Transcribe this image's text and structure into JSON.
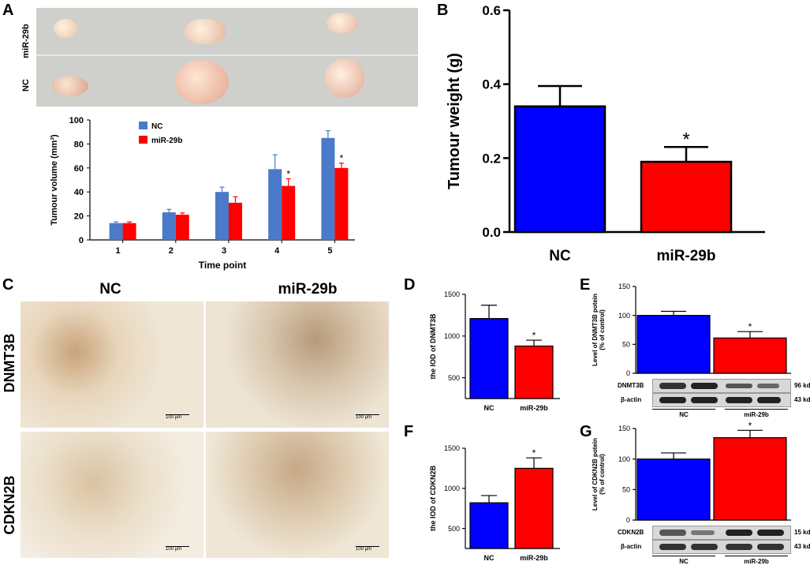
{
  "panels": {
    "a": "A",
    "b": "B",
    "c": "C",
    "d": "D",
    "e": "E",
    "f": "F",
    "g": "G"
  },
  "panel_a_photo": {
    "row_top": "miR-29b",
    "row_bottom": "NC"
  },
  "panel_c": {
    "col_nc": "NC",
    "col_mir": "miR-29b",
    "row_dnmt3b": "DNMT3B",
    "row_cdkn2b": "CDKN2B",
    "scale_bar": "100 μm"
  },
  "blots": {
    "e": {
      "protein": "DNMT3B",
      "control": "β-actin",
      "protein_kd": "96 kd",
      "control_kd": "43 kd",
      "g1": "NC",
      "g2": "miR-29b"
    },
    "g": {
      "protein": "CDKN2B",
      "control": "β-actin",
      "protein_kd": "15 kd",
      "control_kd": "43 kd",
      "g1": "NC",
      "g2": "miR-29b"
    }
  },
  "colors": {
    "nc": "#0000ff",
    "mir": "#ff0000",
    "nc_a": "#4a7ac8",
    "mir_a": "#ff0000"
  },
  "chart_data": [
    {
      "id": "A",
      "type": "bar",
      "title": "",
      "xlabel": "Time point",
      "ylabel": "Tumour volume (mm³)",
      "ylim": [
        0,
        100
      ],
      "yticks": [
        0,
        20,
        40,
        60,
        80,
        100
      ],
      "categories": [
        "1",
        "2",
        "3",
        "4",
        "5"
      ],
      "series": [
        {
          "name": "NC",
          "values": [
            14,
            23,
            40,
            59,
            85
          ],
          "errors": [
            1,
            2.5,
            4,
            12,
            6
          ]
        },
        {
          "name": "miR-29b",
          "values": [
            14,
            21,
            31,
            45,
            60
          ],
          "errors": [
            1,
            1.5,
            5,
            6,
            4
          ]
        }
      ],
      "significance": [
        "",
        "",
        "",
        "*",
        "*"
      ],
      "legend_position": "top-center"
    },
    {
      "id": "B",
      "type": "bar",
      "xlabel": "",
      "ylabel": "Tumour weight (g)",
      "ylim": [
        0,
        0.6
      ],
      "yticks": [
        "0.0",
        "0.2",
        "0.4",
        "0.6"
      ],
      "categories": [
        "NC",
        "miR-29b"
      ],
      "values": [
        0.34,
        0.19
      ],
      "errors": [
        0.055,
        0.04
      ],
      "significance": [
        "",
        "*"
      ]
    },
    {
      "id": "D",
      "type": "bar",
      "ylabel": "the IOD of DNMT3B",
      "ylim": [
        250,
        1500
      ],
      "yticks": [
        "500",
        "1000",
        "1500"
      ],
      "categories": [
        "NC",
        "miR-29b"
      ],
      "values": [
        1210,
        880
      ],
      "errors": [
        160,
        70
      ],
      "significance": [
        "",
        "*"
      ]
    },
    {
      "id": "E",
      "type": "bar",
      "ylabel": "Level of DNMT3B potein (% of control)",
      "ylim": [
        0,
        150
      ],
      "yticks": [
        "0",
        "50",
        "100",
        "150"
      ],
      "categories": [
        "NC",
        "miR-29b"
      ],
      "values": [
        100,
        61
      ],
      "errors": [
        7,
        11
      ],
      "significance": [
        "",
        "*"
      ]
    },
    {
      "id": "F",
      "type": "bar",
      "ylabel": "the IOD of CDKN2B",
      "ylim": [
        250,
        1500
      ],
      "yticks": [
        "500",
        "1000",
        "1500"
      ],
      "categories": [
        "NC",
        "miR-29b"
      ],
      "values": [
        820,
        1250
      ],
      "errors": [
        90,
        130
      ],
      "significance": [
        "",
        "*"
      ]
    },
    {
      "id": "G",
      "type": "bar",
      "ylabel": "Level of CDKN2B potein (% of control)",
      "ylim": [
        0,
        150
      ],
      "yticks": [
        "0",
        "50",
        "100",
        "150"
      ],
      "categories": [
        "NC",
        "miR-29b"
      ],
      "values": [
        100,
        135
      ],
      "errors": [
        10,
        12
      ],
      "significance": [
        "",
        "*"
      ]
    }
  ]
}
